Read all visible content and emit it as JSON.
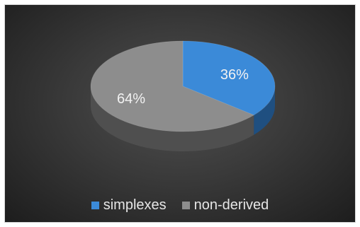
{
  "chart_data": {
    "type": "pie",
    "title": "",
    "categories": [
      "simplexes",
      "non-derived"
    ],
    "values": [
      36,
      64
    ],
    "labels": [
      "36%",
      "64%"
    ],
    "colors": [
      "#3b8ad8",
      "#8d8d8d"
    ],
    "side_colors": [
      "#1f4f80",
      "#4f4f4f"
    ],
    "legend": {
      "position": "bottom",
      "entries": [
        "simplexes",
        "non-derived"
      ]
    }
  }
}
